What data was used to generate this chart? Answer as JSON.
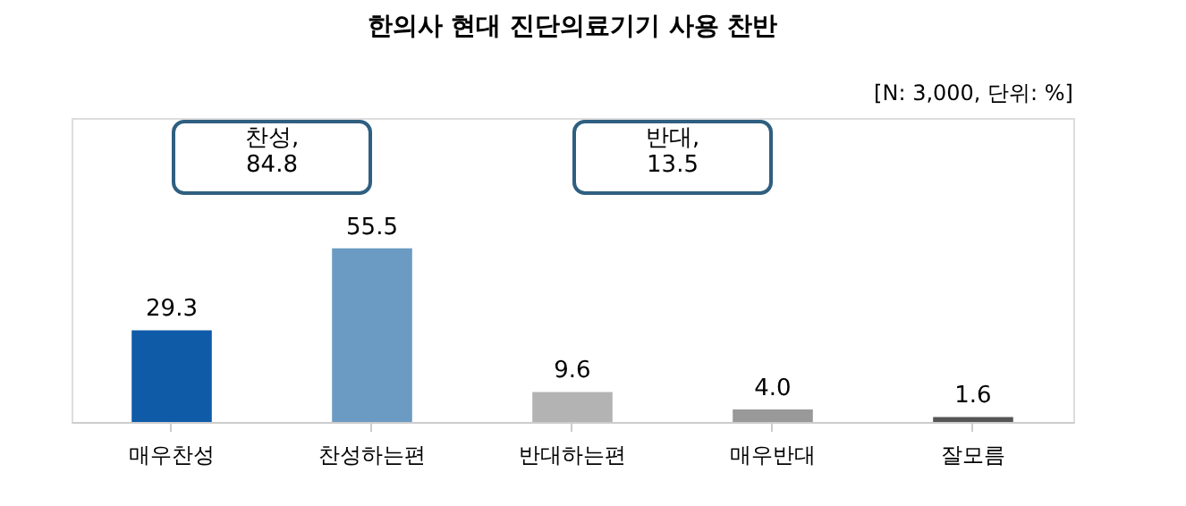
{
  "chart_data": {
    "type": "bar",
    "title": "한의사 현대 진단의료기기 사용 찬반",
    "subtitle": "[N: 3,000, 단위: %]",
    "categories": [
      "매우찬성",
      "찬성하는편",
      "반대하는편",
      "매우반대",
      "잘모름"
    ],
    "values": [
      29.3,
      55.5,
      9.6,
      4.0,
      1.6
    ],
    "colors": [
      "#0f5ba8",
      "#6b9bc3",
      "#b3b3b3",
      "#999999",
      "#555555"
    ],
    "value_labels": [
      "29.3",
      "55.5",
      "9.6",
      "4.0",
      "1.6"
    ],
    "annotations": [
      "찬성, 84.8",
      "반대, 13.5"
    ]
  }
}
